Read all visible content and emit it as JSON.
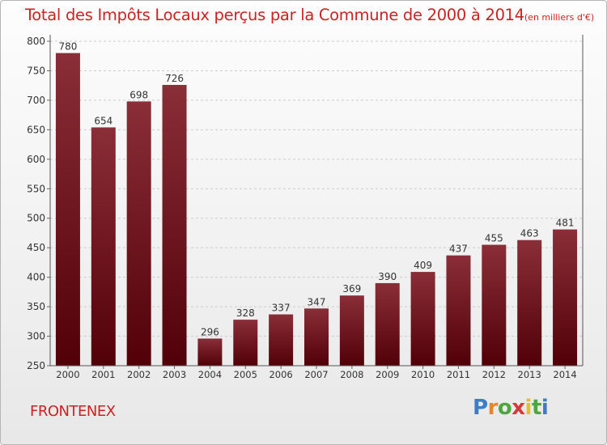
{
  "header": {
    "title": "Total des Impôts Locaux perçus par la Commune de 2000 à 2014",
    "unit": "(en milliers d'€)"
  },
  "footer": {
    "commune": "FRONTENEX",
    "brand": {
      "letters": [
        "P",
        "r",
        "o",
        "x",
        "i",
        "t",
        "i"
      ],
      "colors": [
        "#3a7dc8",
        "#e8852a",
        "#4aa83c",
        "#d93838",
        "#e2c12a",
        "#4aa83c",
        "#3a7dc8"
      ]
    }
  },
  "colors": {
    "bar_top": "#8a2e38",
    "bar_bottom": "#520008",
    "title": "#cc2222",
    "grid": "#cccccc"
  },
  "chart_data": {
    "type": "bar",
    "categories": [
      "2000",
      "2001",
      "2002",
      "2003",
      "2004",
      "2005",
      "2006",
      "2007",
      "2008",
      "2009",
      "2010",
      "2011",
      "2012",
      "2013",
      "2014"
    ],
    "values": [
      780,
      654,
      698,
      726,
      296,
      328,
      337,
      347,
      369,
      390,
      409,
      437,
      455,
      463,
      481
    ],
    "ylim": [
      250,
      800
    ],
    "yticks": [
      250,
      300,
      350,
      400,
      450,
      500,
      550,
      600,
      650,
      700,
      750,
      800
    ],
    "grid": true,
    "data_labels": true
  }
}
